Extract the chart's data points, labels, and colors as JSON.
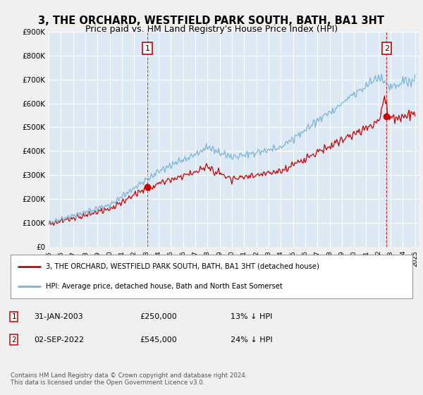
{
  "title": "3, THE ORCHARD, WESTFIELD PARK SOUTH, BATH, BA1 3HT",
  "subtitle": "Price paid vs. HM Land Registry's House Price Index (HPI)",
  "ylim": [
    0,
    900000
  ],
  "yticks": [
    0,
    100000,
    200000,
    300000,
    400000,
    500000,
    600000,
    700000,
    800000,
    900000
  ],
  "sale1_x": 2003.08,
  "sale1_value": 250000,
  "sale2_x": 2022.67,
  "sale2_value": 545000,
  "hpi_color": "#7ab4d8",
  "sale_color": "#cc0000",
  "dashed_color": "#cc0000",
  "background_color": "#f0f0f0",
  "plot_bg_color": "#dce9f5",
  "grid_color": "#ffffff",
  "legend_entry1": "3, THE ORCHARD, WESTFIELD PARK SOUTH, BATH, BA1 3HT (detached house)",
  "legend_entry2": "HPI: Average price, detached house, Bath and North East Somerset",
  "footer": "Contains HM Land Registry data © Crown copyright and database right 2024.\nThis data is licensed under the Open Government Licence v3.0.",
  "title_fontsize": 10.5,
  "subtitle_fontsize": 9
}
